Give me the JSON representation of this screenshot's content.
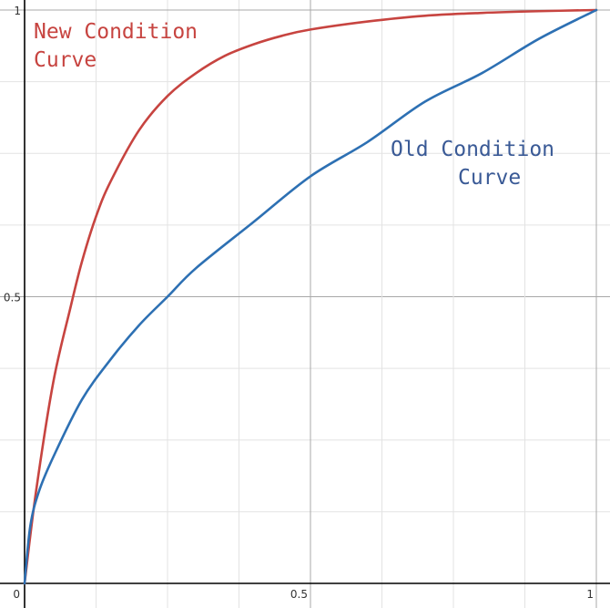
{
  "chart_data": {
    "type": "line",
    "title": "",
    "xlabel": "",
    "ylabel": "",
    "xlim": [
      -0.04,
      1.01
    ],
    "ylim": [
      -0.04,
      1.01
    ],
    "grid": true,
    "x_ticks": [
      {
        "value": 0,
        "label": "0"
      },
      {
        "value": 0.5,
        "label": "0.5"
      },
      {
        "value": 1,
        "label": "1"
      }
    ],
    "y_ticks": [
      {
        "value": 0.5,
        "label": "0.5"
      },
      {
        "value": 1,
        "label": "1"
      }
    ],
    "series": [
      {
        "color": "#c74440",
        "x": [
          0,
          0.02,
          0.05,
          0.08,
          0.1,
          0.125,
          0.15,
          0.2,
          0.25,
          0.3,
          0.35,
          0.4,
          0.45,
          0.5,
          0.6,
          0.7,
          0.8,
          0.9,
          1.0
        ],
        "y": [
          0,
          0.16,
          0.35,
          0.48,
          0.56,
          0.64,
          0.7,
          0.79,
          0.85,
          0.89,
          0.92,
          0.94,
          0.955,
          0.966,
          0.98,
          0.99,
          0.995,
          0.998,
          1.0
        ]
      },
      {
        "color": "#2d70b3",
        "x": [
          0,
          0.01,
          0.025,
          0.05,
          0.1,
          0.15,
          0.2,
          0.25,
          0.3,
          0.4,
          0.5,
          0.6,
          0.7,
          0.8,
          0.9,
          1.0
        ],
        "y": [
          0,
          0.1,
          0.16,
          0.22,
          0.32,
          0.39,
          0.45,
          0.5,
          0.55,
          0.63,
          0.71,
          0.77,
          0.84,
          0.89,
          0.95,
          1.0
        ]
      }
    ],
    "annotations": [
      {
        "lines": [
          "New Condition",
          "Curve"
        ],
        "color": "#c74440"
      },
      {
        "lines": [
          "Old Condition",
          "Curve"
        ],
        "color": "#3a5a96"
      }
    ]
  }
}
